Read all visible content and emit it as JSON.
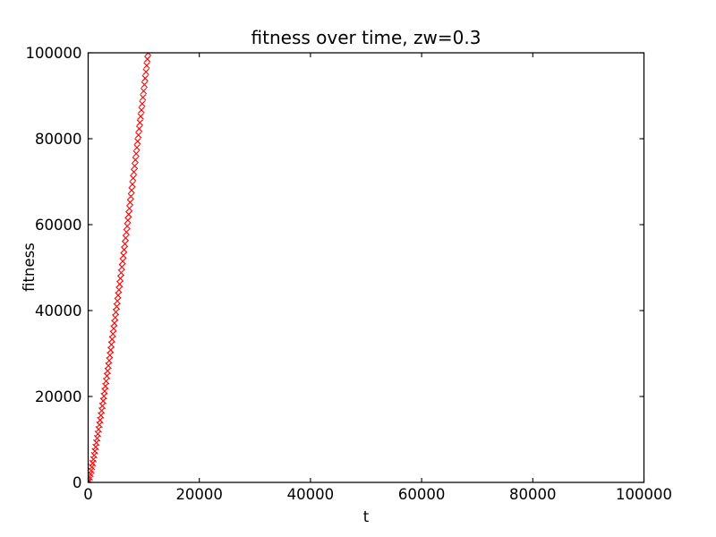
{
  "chart_data": {
    "type": "scatter",
    "title": "fitness over time, zw=0.3",
    "xlabel": "t",
    "ylabel": "fitness",
    "xlim": [
      0,
      100000
    ],
    "ylim": [
      0,
      100000
    ],
    "xticks": [
      0,
      20000,
      40000,
      60000,
      80000,
      100000
    ],
    "yticks": [
      0,
      20000,
      40000,
      60000,
      80000,
      100000
    ],
    "grid": false,
    "legend": false,
    "marker": "x",
    "marker_color": "#ff0000",
    "background_color": "#ffffff",
    "axis_color": "#000000",
    "series": [
      {
        "name": "fitness",
        "x": [
          0,
          135,
          270,
          405,
          540,
          675,
          810,
          945,
          1080,
          1215,
          1350,
          1485,
          1620,
          1755,
          1890,
          2025,
          2160,
          2295,
          2430,
          2565,
          2700,
          2835,
          2970,
          3105,
          3240,
          3375,
          3510,
          3645,
          3780,
          3915,
          4050,
          4185,
          4320,
          4455,
          4590,
          4725,
          4860,
          4995,
          5130,
          5265,
          5400,
          5535,
          5670,
          5805,
          5940,
          6075,
          6210,
          6345,
          6480,
          6615,
          6750,
          6885,
          7020,
          7155,
          7290,
          7425,
          7560,
          7695,
          7830,
          7965,
          8100,
          8235,
          8370,
          8505,
          8640,
          8775,
          8910,
          9045,
          9180,
          9315,
          9450,
          9585,
          9720,
          9855,
          9990,
          10125,
          10260,
          10395,
          10530,
          10665,
          10800
        ],
        "y": [
          0,
          520,
          1196,
          1945,
          2747,
          3591,
          4469,
          5377,
          6312,
          7270,
          8250,
          9249,
          10268,
          11301,
          12352,
          13418,
          14500,
          15594,
          16702,
          17822,
          18951,
          20091,
          21247,
          22413,
          23584,
          24771,
          25963,
          27165,
          28378,
          29601,
          30828,
          32063,
          33307,
          34561,
          35821,
          37089,
          38366,
          39648,
          40933,
          42233,
          43535,
          44843,
          46158,
          47480,
          48807,
          50142,
          51477,
          52826,
          54172,
          55527,
          56906,
          58272,
          59645,
          61027,
          62406,
          63797,
          65193,
          66588,
          67997,
          69404,
          70819,
          72240,
          73660,
          75087,
          76529,
          77960,
          79402,
          80849,
          82307,
          83759,
          85216,
          86679,
          88147,
          89620,
          91098,
          92576,
          94065,
          95553,
          97042,
          98541,
          100000
        ]
      }
    ]
  }
}
